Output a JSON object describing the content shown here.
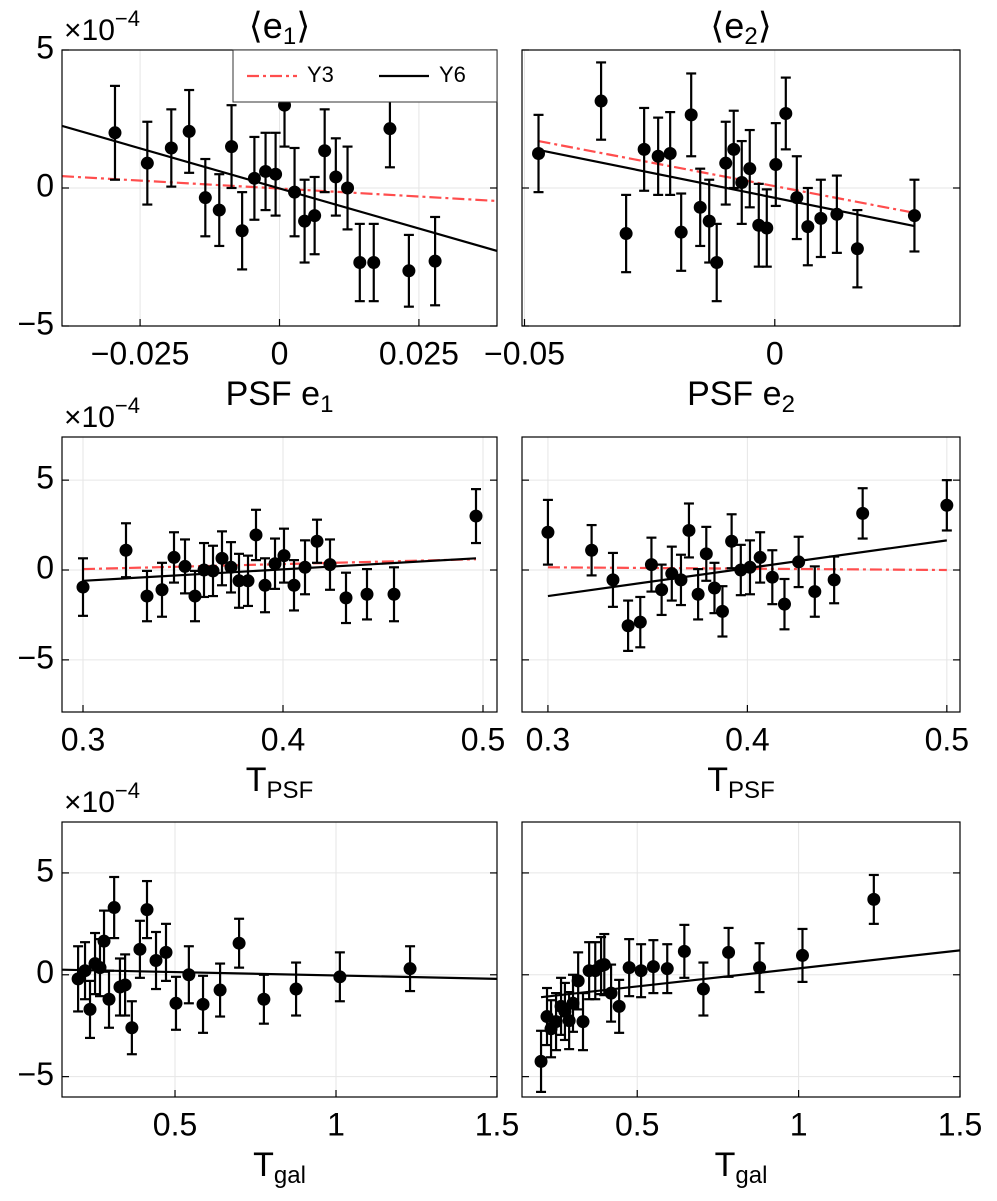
{
  "chart_data": [
    {
      "type": "scatter",
      "title": {
        "text": "⟨e",
        "sub": "1",
        "close": "⟩"
      },
      "xlabel": {
        "text": "PSF e",
        "sub": "1"
      },
      "y_offset": {
        "base": "×10",
        "exponent": "−4"
      },
      "color": "#000000",
      "grid": true,
      "legend": "upper right",
      "x": [
        -0.0295,
        -0.0237,
        -0.0194,
        -0.0162,
        -0.0133,
        -0.0108,
        -0.0086,
        -0.0067,
        -0.0045,
        -0.0025,
        -0.0007,
        0.0009,
        0.0027,
        0.0045,
        0.0063,
        0.0081,
        0.0101,
        0.0122,
        0.0144,
        0.0169,
        0.0198,
        0.0232,
        0.0279
      ],
      "values": [
        2.0,
        0.9,
        1.45,
        2.05,
        -0.35,
        -0.8,
        1.5,
        -1.55,
        0.35,
        0.6,
        0.5,
        3.0,
        -0.15,
        -1.2,
        -1.0,
        1.35,
        0.4,
        0.0,
        -2.7,
        -2.7,
        2.15,
        -3.0,
        -2.65
      ],
      "errors": [
        1.7,
        1.5,
        1.4,
        1.5,
        1.4,
        1.3,
        1.5,
        1.4,
        1.5,
        1.4,
        1.5,
        1.5,
        1.6,
        1.5,
        1.4,
        1.5,
        1.4,
        1.5,
        1.4,
        1.4,
        1.4,
        1.3,
        1.6
      ],
      "lines": [
        {
          "name": "Y3",
          "color": "#ff4d4d",
          "style": "dashdot",
          "x": [
            -0.039,
            0.039
          ],
          "y": [
            0.43,
            -0.47
          ]
        },
        {
          "name": "Y6",
          "color": "#000000",
          "style": "solid",
          "x": [
            -0.039,
            0.039
          ],
          "y": [
            2.25,
            -2.28
          ]
        }
      ],
      "xlim": [
        -0.039,
        0.039
      ],
      "ylim": [
        -5,
        5
      ],
      "xticks": [
        {
          "value": -0.025,
          "label": "−0.025"
        },
        0,
        0.025
      ],
      "yticks": [
        {
          "value": -5,
          "label": "−5"
        },
        0,
        5
      ]
    },
    {
      "type": "scatter",
      "title": {
        "text": "⟨e",
        "sub": "2",
        "close": "⟩"
      },
      "xlabel": {
        "text": "PSF e",
        "sub": "2"
      },
      "color": "#000000",
      "grid": true,
      "show_ytick_labels": false,
      "x": [
        -0.0472,
        -0.0347,
        -0.0297,
        -0.0261,
        -0.0233,
        -0.0209,
        -0.0187,
        -0.0167,
        -0.0149,
        -0.0131,
        -0.0116,
        -0.0098,
        -0.0082,
        -0.0066,
        -0.005,
        -0.0032,
        -0.0016,
        0.0002,
        0.0022,
        0.0044,
        0.0066,
        0.0092,
        0.0124,
        0.0165,
        0.0279
      ],
      "values": [
        1.25,
        3.15,
        -1.65,
        1.4,
        1.15,
        1.25,
        -1.6,
        2.65,
        -0.7,
        -1.2,
        -2.7,
        0.9,
        1.4,
        0.2,
        0.7,
        -1.35,
        -1.45,
        0.85,
        2.7,
        -0.35,
        -1.4,
        -1.1,
        -0.95,
        -2.2,
        -1.0
      ],
      "errors": [
        1.4,
        1.4,
        1.4,
        1.5,
        1.4,
        1.5,
        1.4,
        1.5,
        1.4,
        1.5,
        1.4,
        1.5,
        1.4,
        1.5,
        1.4,
        1.5,
        1.4,
        1.5,
        1.3,
        1.5,
        1.4,
        1.4,
        1.4,
        1.4,
        1.3
      ],
      "lines": [
        {
          "color": "#ff4d4d",
          "style": "dashdot",
          "x": [
            -0.0472,
            0.0279
          ],
          "y": [
            1.7,
            -0.9
          ]
        },
        {
          "color": "#000000",
          "style": "solid",
          "x": [
            -0.0472,
            0.0279
          ],
          "y": [
            1.38,
            -1.38
          ]
        }
      ],
      "xlim": [
        -0.0505,
        0.037
      ],
      "ylim": [
        -5,
        5
      ],
      "xticks": [
        {
          "value": -0.05,
          "label": "−0.05"
        },
        0
      ],
      "yticks": [
        -5,
        0,
        5
      ]
    },
    {
      "type": "scatter",
      "xlabel": {
        "text": "T",
        "sub": "PSF"
      },
      "y_offset": {
        "base": "×10",
        "exponent": "−4"
      },
      "color": "#000000",
      "grid": true,
      "x": [
        0.3,
        0.3215,
        0.332,
        0.3395,
        0.3455,
        0.351,
        0.356,
        0.3605,
        0.365,
        0.3695,
        0.374,
        0.378,
        0.3825,
        0.3865,
        0.391,
        0.396,
        0.4005,
        0.4055,
        0.411,
        0.417,
        0.4235,
        0.4315,
        0.442,
        0.4555,
        0.4965
      ],
      "values": [
        -0.95,
        1.1,
        -1.45,
        -1.1,
        0.7,
        0.2,
        -1.45,
        0.0,
        -0.05,
        0.65,
        0.15,
        -0.6,
        -0.6,
        1.95,
        -0.85,
        0.35,
        0.8,
        -0.85,
        0.15,
        1.6,
        0.3,
        -1.55,
        -1.35,
        -1.35,
        3.0
      ],
      "errors": [
        1.6,
        1.5,
        1.4,
        1.5,
        1.4,
        1.5,
        1.4,
        1.5,
        1.4,
        1.5,
        1.4,
        1.5,
        1.4,
        1.4,
        1.5,
        1.4,
        1.5,
        1.4,
        1.5,
        1.2,
        1.4,
        1.4,
        1.4,
        1.5,
        1.5
      ],
      "lines": [
        {
          "color": "#ff4d4d",
          "style": "dashdot",
          "x": [
            0.3,
            0.4965
          ],
          "y": [
            0.05,
            0.6
          ]
        },
        {
          "color": "#000000",
          "style": "solid",
          "x": [
            0.3,
            0.4965
          ],
          "y": [
            -0.6,
            0.65
          ]
        }
      ],
      "xlim": [
        0.2895,
        0.507
      ],
      "ylim": [
        -7.9,
        7.4
      ],
      "xticks": [
        0.3,
        0.4,
        0.5
      ],
      "yticks": [
        {
          "value": -5,
          "label": "−5"
        },
        0,
        5
      ]
    },
    {
      "type": "scatter",
      "xlabel": {
        "text": "T",
        "sub": "PSF"
      },
      "color": "#000000",
      "grid": true,
      "show_ytick_labels": false,
      "x": [
        0.3,
        0.3219,
        0.3326,
        0.3402,
        0.3463,
        0.3519,
        0.357,
        0.3621,
        0.3667,
        0.3707,
        0.3753,
        0.3794,
        0.3835,
        0.3875,
        0.3921,
        0.3967,
        0.4013,
        0.4064,
        0.4125,
        0.4186,
        0.4257,
        0.4338,
        0.4435,
        0.4578,
        0.5
      ],
      "values": [
        2.1,
        1.1,
        -0.55,
        -3.1,
        -2.9,
        0.3,
        -1.1,
        -0.2,
        -0.55,
        2.2,
        -1.35,
        0.9,
        -1.0,
        -2.3,
        1.6,
        0.0,
        0.15,
        0.7,
        -0.4,
        -1.9,
        0.45,
        -1.2,
        -0.55,
        3.15,
        3.6
      ],
      "errors": [
        1.8,
        1.4,
        1.5,
        1.4,
        1.4,
        1.5,
        1.4,
        1.5,
        1.4,
        1.5,
        1.4,
        1.5,
        1.4,
        1.4,
        1.5,
        1.4,
        1.5,
        1.4,
        1.5,
        1.4,
        1.4,
        1.4,
        1.3,
        1.4,
        1.4
      ],
      "lines": [
        {
          "color": "#ff4d4d",
          "style": "dashdot",
          "x": [
            0.3,
            0.5
          ],
          "y": [
            0.15,
            0.0
          ]
        },
        {
          "color": "#000000",
          "style": "solid",
          "x": [
            0.3,
            0.5
          ],
          "y": [
            -1.45,
            1.65
          ]
        }
      ],
      "xlim": [
        0.287,
        0.5066
      ],
      "ylim": [
        -7.9,
        7.4
      ],
      "xticks": [
        0.3,
        0.4,
        0.5
      ],
      "yticks": [
        -5,
        0,
        5
      ]
    },
    {
      "type": "scatter",
      "xlabel": {
        "text": "T",
        "sub": "gal"
      },
      "y_offset": {
        "base": "×10",
        "exponent": "−4"
      },
      "color": "#000000",
      "grid": true,
      "x": [
        0.199,
        0.2205,
        0.236,
        0.2516,
        0.267,
        0.2795,
        0.295,
        0.311,
        0.329,
        0.345,
        0.366,
        0.391,
        0.413,
        0.441,
        0.472,
        0.503,
        0.543,
        0.587,
        0.64,
        0.699,
        0.776,
        0.876,
        1.012,
        1.23
      ],
      "values": [
        -0.2,
        0.2,
        -1.7,
        0.55,
        0.35,
        1.65,
        -1.2,
        3.3,
        -0.6,
        -0.5,
        -2.6,
        1.25,
        3.2,
        0.7,
        1.1,
        -1.4,
        0.0,
        -1.45,
        -0.75,
        1.55,
        -1.2,
        -0.7,
        -0.1,
        0.3
      ],
      "errors": [
        1.6,
        1.4,
        1.4,
        1.5,
        1.4,
        1.5,
        1.4,
        1.5,
        1.4,
        1.5,
        1.3,
        1.4,
        1.4,
        1.4,
        1.4,
        1.3,
        1.4,
        1.4,
        1.3,
        1.2,
        1.2,
        1.3,
        1.2,
        1.1
      ],
      "lines": [
        {
          "color": "#000000",
          "style": "solid",
          "x": [
            0.149,
            1.5
          ],
          "y": [
            0.25,
            -0.2
          ]
        }
      ],
      "xlim": [
        0.149,
        1.5
      ],
      "ylim": [
        -6.0,
        7.5
      ],
      "xticks": [
        0.5,
        1,
        1.5
      ],
      "yticks": [
        {
          "value": -5,
          "label": "−5"
        },
        0,
        5
      ]
    },
    {
      "type": "scatter",
      "xlabel": {
        "text": "T",
        "sub": "gal"
      },
      "color": "#000000",
      "grid": true,
      "show_ytick_labels": false,
      "x": [
        0.202,
        0.2205,
        0.233,
        0.2485,
        0.264,
        0.276,
        0.289,
        0.301,
        0.317,
        0.332,
        0.351,
        0.37,
        0.388,
        0.398,
        0.419,
        0.444,
        0.475,
        0.512,
        0.55,
        0.593,
        0.646,
        0.705,
        0.783,
        0.879,
        1.012,
        1.233
      ],
      "values": [
        -4.25,
        -2.05,
        -2.65,
        -2.3,
        -1.55,
        -1.8,
        -2.25,
        -1.4,
        -0.3,
        -2.3,
        0.2,
        0.2,
        0.45,
        0.5,
        -0.9,
        -1.55,
        0.35,
        0.2,
        0.4,
        0.3,
        1.15,
        -0.7,
        1.1,
        0.35,
        0.95,
        3.7
      ],
      "errors": [
        1.5,
        1.4,
        1.4,
        1.4,
        1.4,
        1.4,
        1.4,
        1.4,
        1.4,
        1.4,
        1.4,
        1.4,
        1.4,
        1.5,
        1.4,
        1.3,
        1.4,
        1.3,
        1.3,
        1.2,
        1.3,
        1.3,
        1.2,
        1.2,
        1.3,
        1.2
      ],
      "lines": [
        {
          "color": "#000000",
          "style": "solid",
          "x": [
            0.202,
            1.5
          ],
          "y": [
            -1.1,
            1.2
          ]
        }
      ],
      "xlim": [
        0.143,
        1.5
      ],
      "ylim": [
        -6.0,
        7.5
      ],
      "xticks": [
        0.5,
        1,
        1.5
      ],
      "yticks": [
        -5,
        0,
        5
      ]
    }
  ]
}
